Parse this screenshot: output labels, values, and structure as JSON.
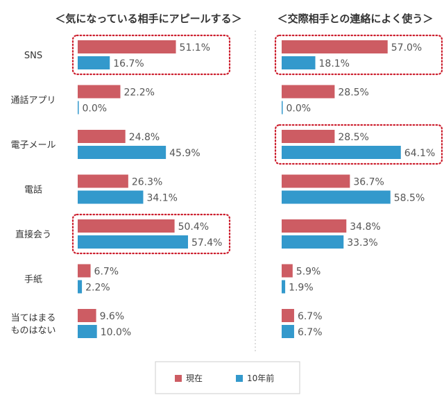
{
  "chart_data": [
    {
      "type": "bar",
      "title": "＜気になっている相手にアピールする＞",
      "categories": [
        "SNS",
        "通話アプリ",
        "電子メール",
        "電話",
        "直接会う",
        "手紙",
        "当てはまる\nものはない"
      ],
      "series": [
        {
          "name": "現在",
          "values": [
            51.1,
            22.2,
            24.8,
            26.3,
            50.4,
            6.7,
            9.6
          ]
        },
        {
          "name": "10年前",
          "values": [
            16.7,
            0.0,
            45.9,
            34.1,
            57.4,
            2.2,
            10.0
          ]
        }
      ],
      "value_labels": {
        "現在": [
          "51.1%",
          "22.2%",
          "24.8%",
          "26.3%",
          "50.4%",
          "6.7%",
          "9.6%"
        ],
        "10年前": [
          "16.7%",
          "0.0%",
          "45.9%",
          "34.1%",
          "57.4%",
          "2.2%",
          "10.0%"
        ]
      },
      "highlighted_categories": [
        "SNS",
        "直接会う"
      ],
      "xlim": [
        0,
        100
      ],
      "xlabel": "",
      "ylabel": ""
    },
    {
      "type": "bar",
      "title": "＜交際相手との連絡によく使う＞",
      "categories": [
        "SNS",
        "通話アプリ",
        "電子メール",
        "電話",
        "直接会う",
        "手紙",
        "当てはまる\nものはない"
      ],
      "series": [
        {
          "name": "現在",
          "values": [
            57.0,
            28.5,
            28.5,
            36.7,
            34.8,
            5.9,
            6.7
          ]
        },
        {
          "name": "10年前",
          "values": [
            18.1,
            0.0,
            64.1,
            58.5,
            33.3,
            1.9,
            6.7
          ]
        }
      ],
      "value_labels": {
        "現在": [
          "57.0%",
          "28.5%",
          "28.5%",
          "36.7%",
          "34.8%",
          "5.9%",
          "6.7%"
        ],
        "10年前": [
          "18.1%",
          "0.0%",
          "64.1%",
          "58.5%",
          "33.3%",
          "1.9%",
          "6.7%"
        ]
      },
      "highlighted_categories": [
        "SNS",
        "電子メール"
      ],
      "xlim": [
        0,
        100
      ],
      "xlabel": "",
      "ylabel": ""
    }
  ],
  "legend": {
    "placement": "bottom-center",
    "items": [
      {
        "label": "現在",
        "color": "#cd5c63"
      },
      {
        "label": "10年前",
        "color": "#3399cc"
      }
    ]
  },
  "colors": {
    "current": "#cd5c63",
    "past": "#3399cc",
    "highlight": "#cc1e2d",
    "divider": "#bbbbbb",
    "legend_border": "#cccccc"
  }
}
